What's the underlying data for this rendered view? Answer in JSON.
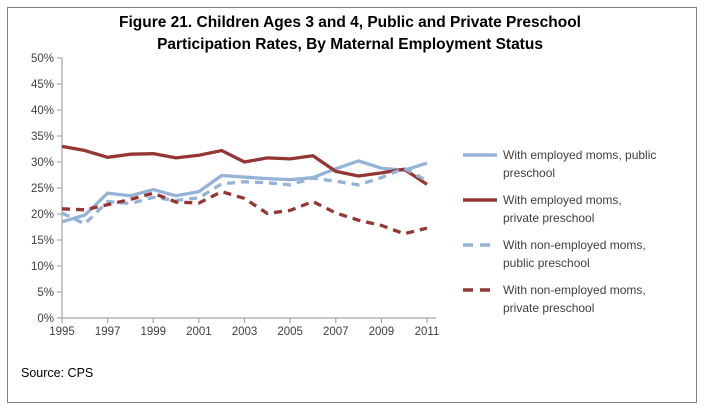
{
  "figure": {
    "title_line1": "Figure 21. Children Ages 3 and 4, Public and Private Preschool",
    "title_line2": "Participation Rates, By Maternal Employment Status",
    "source": "Source: CPS"
  },
  "colors": {
    "blue": "#95B3D7",
    "red": "#943634",
    "axis": "#A6A6A6",
    "tick_text": "#404040",
    "border": "#808080"
  },
  "legend": {
    "items": [
      {
        "line1": "With employed moms, public",
        "line2": "preschool"
      },
      {
        "line1": "With employed moms,",
        "line2": "private preschool"
      },
      {
        "line1": "With non-employed moms,",
        "line2": "public preschool"
      },
      {
        "line1": "With non-employed moms,",
        "line2": "private preschool"
      }
    ]
  },
  "chart_data": {
    "type": "line",
    "title": "Figure 21. Children Ages 3 and 4, Public and Private Preschool Participation Rates, By Maternal Employment Status",
    "x": [
      1995,
      1996,
      1997,
      1998,
      1999,
      2000,
      2001,
      2002,
      2003,
      2004,
      2005,
      2006,
      2007,
      2008,
      2009,
      2010,
      2011
    ],
    "x_tick_labels": [
      "1995",
      "1997",
      "1999",
      "2001",
      "2003",
      "2005",
      "2007",
      "2009",
      "2011"
    ],
    "ylim": [
      0,
      50
    ],
    "y_tick_step": 5,
    "y_tick_suffix": "%",
    "grid": false,
    "legend_position": "right",
    "series": [
      {
        "name": "With employed moms, public preschool",
        "color": "#95B3D7",
        "dash": "solid",
        "values": [
          18.5,
          19.8,
          24.0,
          23.5,
          24.7,
          23.5,
          24.3,
          27.4,
          27.1,
          26.8,
          26.6,
          27.0,
          28.7,
          30.2,
          28.8,
          28.4,
          29.8
        ]
      },
      {
        "name": "With employed moms, private preschool",
        "color": "#943634",
        "dash": "solid",
        "values": [
          33.0,
          32.2,
          30.9,
          31.5,
          31.6,
          30.8,
          31.3,
          32.2,
          30.0,
          30.8,
          30.6,
          31.2,
          28.2,
          27.3,
          27.9,
          28.6,
          25.7
        ]
      },
      {
        "name": "With non-employed moms, public preschool",
        "color": "#95B3D7",
        "dash": "dashed",
        "values": [
          20.2,
          18.1,
          22.4,
          22.0,
          23.2,
          22.6,
          23.1,
          25.8,
          26.2,
          26.0,
          25.6,
          26.9,
          26.3,
          25.6,
          27.0,
          28.8,
          26.4
        ]
      },
      {
        "name": "With non-employed moms, private preschool",
        "color": "#943634",
        "dash": "dashed",
        "values": [
          21.0,
          20.8,
          21.8,
          22.8,
          24.0,
          22.3,
          22.1,
          24.3,
          23.0,
          20.1,
          20.7,
          22.4,
          20.2,
          18.8,
          17.8,
          16.2,
          17.3
        ]
      }
    ]
  }
}
